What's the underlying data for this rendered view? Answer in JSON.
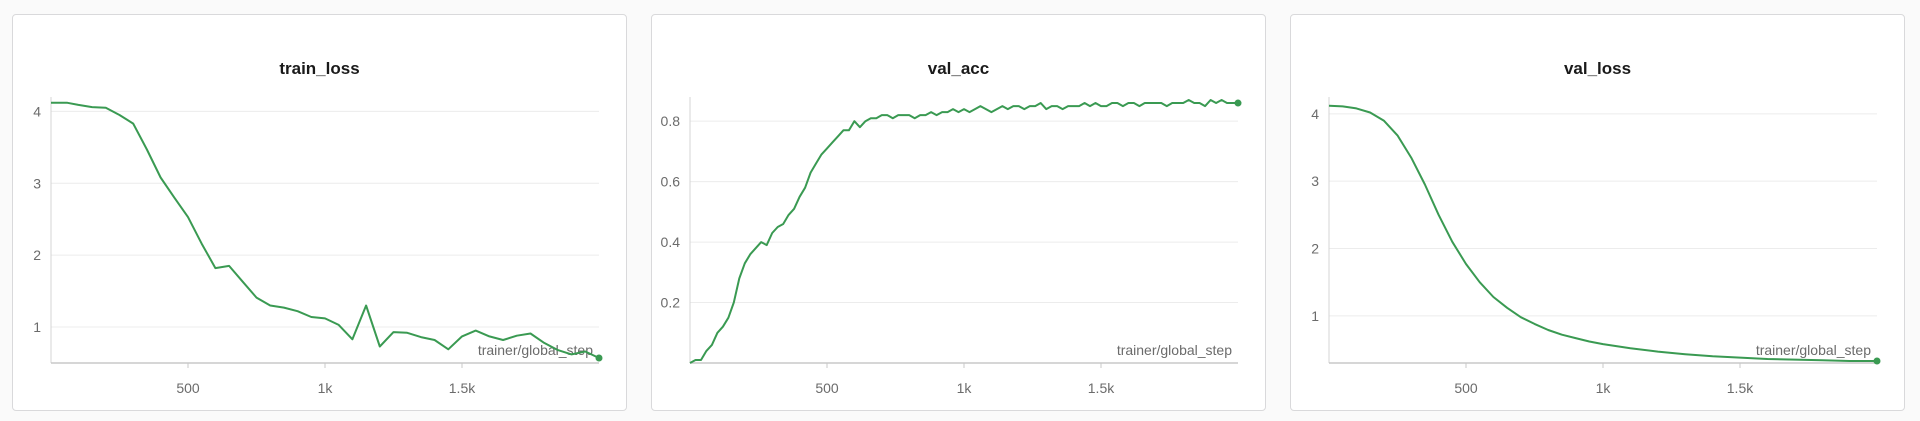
{
  "chart_data": [
    {
      "type": "line",
      "title": "train_loss",
      "xlabel": "trainer/global_step",
      "ylabel": "",
      "xlim": [
        0,
        2000
      ],
      "ylim": [
        0.5,
        4.2
      ],
      "xticks": [
        500,
        1000,
        1500
      ],
      "xtick_labels": [
        "500",
        "1k",
        "1.5k"
      ],
      "yticks": [
        1,
        2,
        3,
        4
      ],
      "ytick_labels": [
        "1",
        "2",
        "3",
        "4"
      ],
      "grid": true,
      "color": "#3a9a52",
      "endpoint_marker": true,
      "x": [
        0,
        60,
        100,
        150,
        200,
        250,
        300,
        350,
        400,
        450,
        500,
        550,
        600,
        650,
        700,
        750,
        800,
        850,
        900,
        950,
        1000,
        1050,
        1100,
        1150,
        1200,
        1250,
        1300,
        1350,
        1400,
        1450,
        1500,
        1550,
        1600,
        1650,
        1700,
        1750,
        1800,
        1850,
        1900,
        1950,
        2000
      ],
      "y": [
        4.12,
        4.12,
        4.09,
        4.06,
        4.05,
        3.95,
        3.83,
        3.47,
        3.08,
        2.8,
        2.53,
        2.16,
        1.82,
        1.85,
        1.63,
        1.41,
        1.3,
        1.27,
        1.22,
        1.14,
        1.12,
        1.03,
        0.83,
        1.3,
        0.73,
        0.93,
        0.92,
        0.86,
        0.82,
        0.69,
        0.87,
        0.95,
        0.87,
        0.82,
        0.88,
        0.91,
        0.78,
        0.68,
        0.62,
        0.66,
        0.57
      ]
    },
    {
      "type": "line",
      "title": "val_acc",
      "xlabel": "trainer/global_step",
      "ylabel": "",
      "xlim": [
        0,
        2000
      ],
      "ylim": [
        0,
        0.88
      ],
      "xticks": [
        500,
        1000,
        1500
      ],
      "xtick_labels": [
        "500",
        "1k",
        "1.5k"
      ],
      "yticks": [
        0.2,
        0.4,
        0.6,
        0.8
      ],
      "ytick_labels": [
        "0.2",
        "0.4",
        "0.6",
        "0.8"
      ],
      "grid": true,
      "color": "#3a9a52",
      "endpoint_marker": true,
      "x": [
        0,
        20,
        40,
        60,
        80,
        100,
        120,
        140,
        160,
        180,
        200,
        220,
        240,
        260,
        280,
        300,
        320,
        340,
        360,
        380,
        400,
        420,
        440,
        460,
        480,
        500,
        520,
        540,
        560,
        580,
        600,
        620,
        640,
        660,
        680,
        700,
        720,
        740,
        760,
        780,
        800,
        820,
        840,
        860,
        880,
        900,
        920,
        940,
        960,
        980,
        1000,
        1020,
        1040,
        1060,
        1080,
        1100,
        1120,
        1140,
        1160,
        1180,
        1200,
        1220,
        1240,
        1260,
        1280,
        1300,
        1320,
        1340,
        1360,
        1380,
        1400,
        1420,
        1440,
        1460,
        1480,
        1500,
        1520,
        1540,
        1560,
        1580,
        1600,
        1620,
        1640,
        1660,
        1680,
        1700,
        1720,
        1740,
        1760,
        1780,
        1800,
        1820,
        1840,
        1860,
        1880,
        1900,
        1920,
        1940,
        1960,
        1980,
        2000
      ],
      "y": [
        0.0,
        0.01,
        0.01,
        0.04,
        0.06,
        0.1,
        0.12,
        0.15,
        0.2,
        0.28,
        0.33,
        0.36,
        0.38,
        0.4,
        0.39,
        0.43,
        0.45,
        0.46,
        0.49,
        0.51,
        0.55,
        0.58,
        0.63,
        0.66,
        0.69,
        0.71,
        0.73,
        0.75,
        0.77,
        0.77,
        0.8,
        0.78,
        0.8,
        0.81,
        0.81,
        0.82,
        0.82,
        0.81,
        0.82,
        0.82,
        0.82,
        0.81,
        0.82,
        0.82,
        0.83,
        0.82,
        0.83,
        0.83,
        0.84,
        0.83,
        0.84,
        0.83,
        0.84,
        0.85,
        0.84,
        0.83,
        0.84,
        0.85,
        0.84,
        0.85,
        0.85,
        0.84,
        0.85,
        0.85,
        0.86,
        0.84,
        0.85,
        0.85,
        0.84,
        0.85,
        0.85,
        0.85,
        0.86,
        0.85,
        0.86,
        0.85,
        0.85,
        0.86,
        0.86,
        0.85,
        0.86,
        0.86,
        0.85,
        0.86,
        0.86,
        0.86,
        0.86,
        0.85,
        0.86,
        0.86,
        0.86,
        0.87,
        0.86,
        0.86,
        0.85,
        0.87,
        0.86,
        0.87,
        0.86,
        0.86,
        0.86
      ]
    },
    {
      "type": "line",
      "title": "val_loss",
      "xlabel": "trainer/global_step",
      "ylabel": "",
      "xlim": [
        0,
        2000
      ],
      "ylim": [
        0.3,
        4.25
      ],
      "xticks": [
        500,
        1000,
        1500
      ],
      "xtick_labels": [
        "500",
        "1k",
        "1.5k"
      ],
      "yticks": [
        1,
        2,
        3,
        4
      ],
      "ytick_labels": [
        "1",
        "2",
        "3",
        "4"
      ],
      "grid": true,
      "color": "#3a9a52",
      "endpoint_marker": true,
      "x": [
        0,
        50,
        100,
        150,
        200,
        250,
        300,
        350,
        400,
        450,
        500,
        550,
        600,
        650,
        700,
        750,
        800,
        850,
        900,
        950,
        1000,
        1100,
        1200,
        1300,
        1400,
        1500,
        1600,
        1700,
        1800,
        1900,
        2000
      ],
      "y": [
        4.12,
        4.11,
        4.08,
        4.02,
        3.9,
        3.68,
        3.35,
        2.95,
        2.5,
        2.1,
        1.77,
        1.5,
        1.28,
        1.12,
        0.98,
        0.88,
        0.79,
        0.72,
        0.67,
        0.62,
        0.58,
        0.52,
        0.47,
        0.43,
        0.4,
        0.38,
        0.36,
        0.35,
        0.34,
        0.33,
        0.33
      ]
    }
  ]
}
